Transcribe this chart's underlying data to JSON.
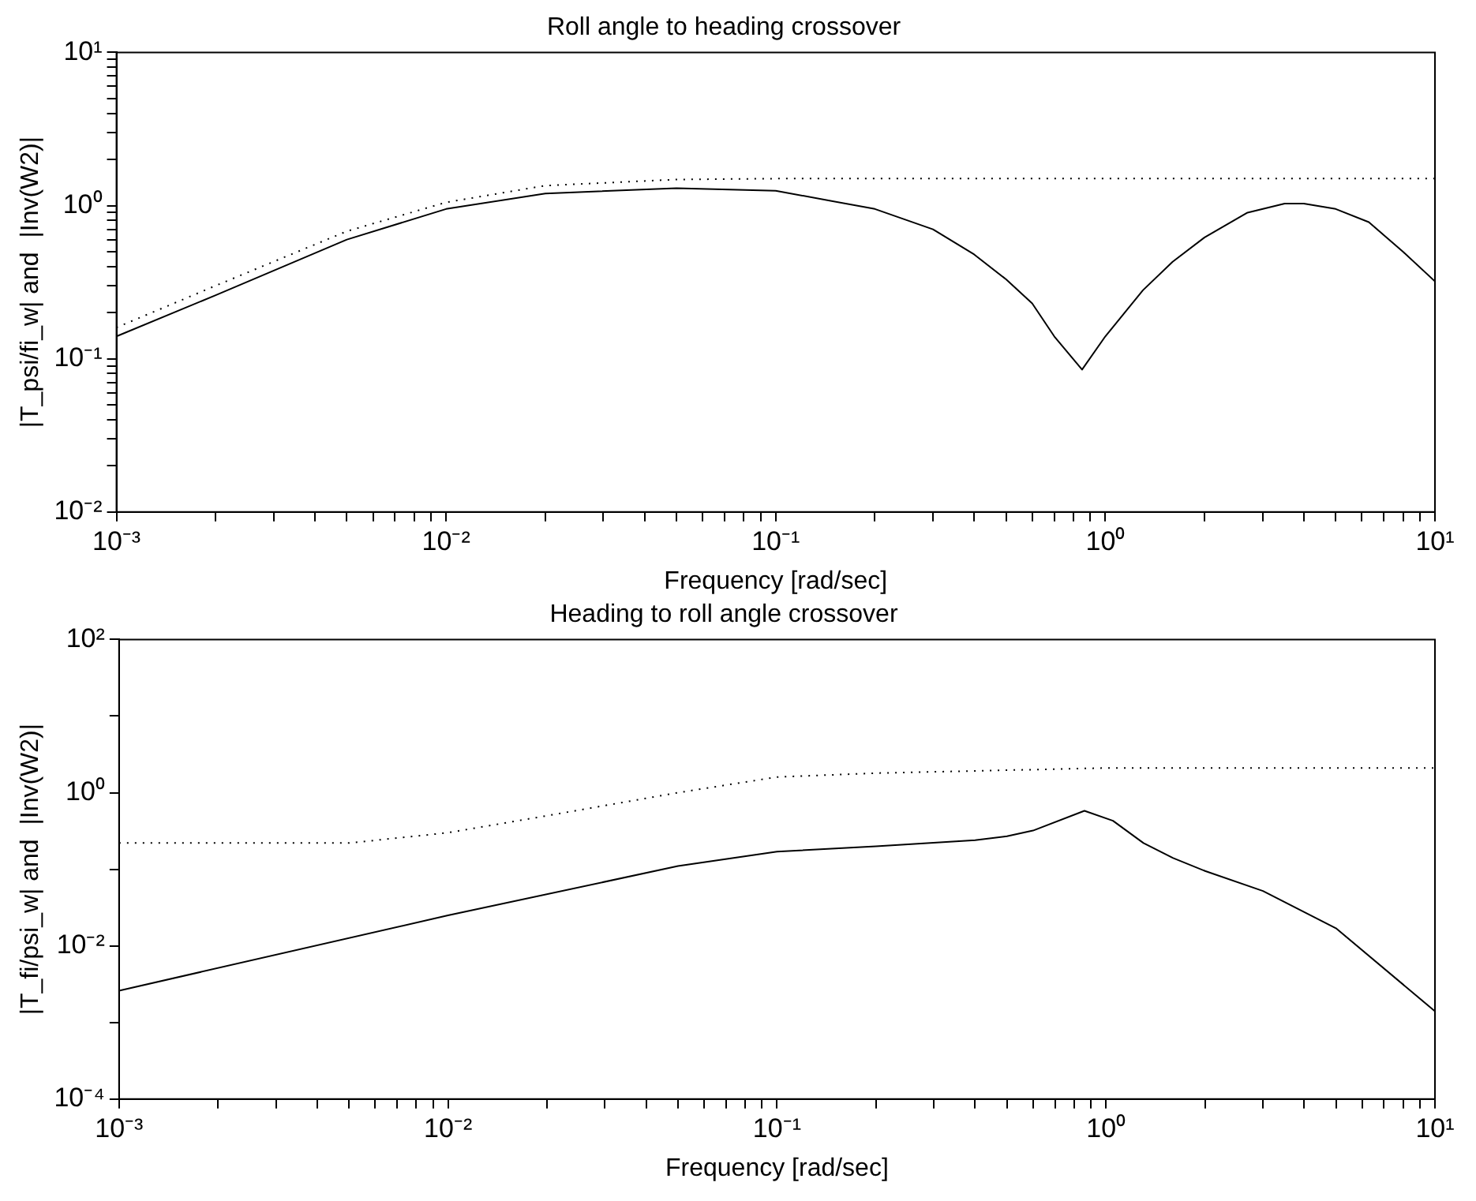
{
  "chart_data": [
    {
      "type": "line",
      "title": "Roll angle to heading crossover",
      "xlabel": "Frequency [rad/sec]",
      "ylabel": "|T_psi/fi_w| and  |Inv(W2)|",
      "log": "xy",
      "grid": false,
      "legend": false,
      "xlim": [
        0.001,
        10
      ],
      "ylim": [
        0.01,
        10
      ],
      "xticks": [
        {
          "value": 0.001,
          "label": "10⁻³"
        },
        {
          "value": 0.002,
          "label": null
        },
        {
          "value": 0.003,
          "label": null
        },
        {
          "value": 0.004,
          "label": null
        },
        {
          "value": 0.005,
          "label": null
        },
        {
          "value": 0.006,
          "label": null
        },
        {
          "value": 0.007,
          "label": null
        },
        {
          "value": 0.008,
          "label": null
        },
        {
          "value": 0.009,
          "label": null
        },
        {
          "value": 0.01,
          "label": "10⁻²"
        },
        {
          "value": 0.02,
          "label": null
        },
        {
          "value": 0.03,
          "label": null
        },
        {
          "value": 0.04,
          "label": null
        },
        {
          "value": 0.05,
          "label": null
        },
        {
          "value": 0.06,
          "label": null
        },
        {
          "value": 0.07,
          "label": null
        },
        {
          "value": 0.08,
          "label": null
        },
        {
          "value": 0.09,
          "label": null
        },
        {
          "value": 0.1,
          "label": "10⁻¹"
        },
        {
          "value": 0.2,
          "label": null
        },
        {
          "value": 0.3,
          "label": null
        },
        {
          "value": 0.4,
          "label": null
        },
        {
          "value": 0.5,
          "label": null
        },
        {
          "value": 0.6,
          "label": null
        },
        {
          "value": 0.7,
          "label": null
        },
        {
          "value": 0.8,
          "label": null
        },
        {
          "value": 0.9,
          "label": null
        },
        {
          "value": 1,
          "label": "10⁰"
        },
        {
          "value": 2,
          "label": null
        },
        {
          "value": 3,
          "label": null
        },
        {
          "value": 4,
          "label": null
        },
        {
          "value": 5,
          "label": null
        },
        {
          "value": 6,
          "label": null
        },
        {
          "value": 7,
          "label": null
        },
        {
          "value": 8,
          "label": null
        },
        {
          "value": 9,
          "label": null
        },
        {
          "value": 10,
          "label": "10¹"
        }
      ],
      "yticks": [
        {
          "value": 0.01,
          "label": "10⁻²"
        },
        {
          "value": 0.02,
          "label": null
        },
        {
          "value": 0.03,
          "label": null
        },
        {
          "value": 0.04,
          "label": null
        },
        {
          "value": 0.05,
          "label": null
        },
        {
          "value": 0.06,
          "label": null
        },
        {
          "value": 0.07,
          "label": null
        },
        {
          "value": 0.08,
          "label": null
        },
        {
          "value": 0.09,
          "label": null
        },
        {
          "value": 0.1,
          "label": "10⁻¹"
        },
        {
          "value": 0.2,
          "label": null
        },
        {
          "value": 0.3,
          "label": null
        },
        {
          "value": 0.4,
          "label": null
        },
        {
          "value": 0.5,
          "label": null
        },
        {
          "value": 0.6,
          "label": null
        },
        {
          "value": 0.7,
          "label": null
        },
        {
          "value": 0.8,
          "label": null
        },
        {
          "value": 0.9,
          "label": null
        },
        {
          "value": 1,
          "label": "10⁰"
        },
        {
          "value": 2,
          "label": null
        },
        {
          "value": 3,
          "label": null
        },
        {
          "value": 4,
          "label": null
        },
        {
          "value": 5,
          "label": null
        },
        {
          "value": 6,
          "label": null
        },
        {
          "value": 7,
          "label": null
        },
        {
          "value": 8,
          "label": null
        },
        {
          "value": 9,
          "label": null
        },
        {
          "value": 10,
          "label": "10¹"
        }
      ],
      "series": [
        {
          "color": "#000000",
          "line_style": "solid",
          "x": [
            0.001,
            0.002,
            0.005,
            0.01,
            0.02,
            0.05,
            0.1,
            0.2,
            0.3,
            0.4,
            0.5,
            0.6,
            0.7,
            0.85,
            1.0,
            1.3,
            1.6,
            2,
            2.7,
            3.5,
            4,
            5,
            6.3,
            8,
            10
          ],
          "values": [
            0.14,
            0.26,
            0.6,
            0.95,
            1.2,
            1.3,
            1.25,
            0.95,
            0.7,
            0.48,
            0.33,
            0.23,
            0.14,
            0.085,
            0.14,
            0.28,
            0.43,
            0.62,
            0.9,
            1.03,
            1.03,
            0.95,
            0.78,
            0.5,
            0.32
          ]
        },
        {
          "color": "#000000",
          "line_style": "dotted",
          "x": [
            0.001,
            0.002,
            0.005,
            0.01,
            0.02,
            0.05,
            0.1,
            1,
            10
          ],
          "values": [
            0.16,
            0.3,
            0.68,
            1.05,
            1.35,
            1.48,
            1.5,
            1.5,
            1.5
          ]
        }
      ]
    },
    {
      "type": "line",
      "title": "Heading to roll angle crossover",
      "xlabel": "Frequency [rad/sec]",
      "ylabel": "|T_fi/psi_w| and  |Inv(W2)|",
      "log": "xy",
      "grid": false,
      "legend": false,
      "xlim": [
        0.001,
        10
      ],
      "ylim": [
        0.0001,
        100
      ],
      "xticks": [
        {
          "value": 0.001,
          "label": "10⁻³"
        },
        {
          "value": 0.002,
          "label": null
        },
        {
          "value": 0.003,
          "label": null
        },
        {
          "value": 0.004,
          "label": null
        },
        {
          "value": 0.005,
          "label": null
        },
        {
          "value": 0.006,
          "label": null
        },
        {
          "value": 0.007,
          "label": null
        },
        {
          "value": 0.008,
          "label": null
        },
        {
          "value": 0.009,
          "label": null
        },
        {
          "value": 0.01,
          "label": "10⁻²"
        },
        {
          "value": 0.02,
          "label": null
        },
        {
          "value": 0.03,
          "label": null
        },
        {
          "value": 0.04,
          "label": null
        },
        {
          "value": 0.05,
          "label": null
        },
        {
          "value": 0.06,
          "label": null
        },
        {
          "value": 0.07,
          "label": null
        },
        {
          "value": 0.08,
          "label": null
        },
        {
          "value": 0.09,
          "label": null
        },
        {
          "value": 0.1,
          "label": "10⁻¹"
        },
        {
          "value": 0.2,
          "label": null
        },
        {
          "value": 0.3,
          "label": null
        },
        {
          "value": 0.4,
          "label": null
        },
        {
          "value": 0.5,
          "label": null
        },
        {
          "value": 0.6,
          "label": null
        },
        {
          "value": 0.7,
          "label": null
        },
        {
          "value": 0.8,
          "label": null
        },
        {
          "value": 0.9,
          "label": null
        },
        {
          "value": 1,
          "label": "10⁰"
        },
        {
          "value": 2,
          "label": null
        },
        {
          "value": 3,
          "label": null
        },
        {
          "value": 4,
          "label": null
        },
        {
          "value": 5,
          "label": null
        },
        {
          "value": 6,
          "label": null
        },
        {
          "value": 7,
          "label": null
        },
        {
          "value": 8,
          "label": null
        },
        {
          "value": 9,
          "label": null
        },
        {
          "value": 10,
          "label": "10¹"
        }
      ],
      "yticks": [
        {
          "value": 0.0001,
          "label": "10⁻⁴"
        },
        {
          "value": 0.001,
          "label": null
        },
        {
          "value": 0.01,
          "label": "10⁻²"
        },
        {
          "value": 0.1,
          "label": null
        },
        {
          "value": 1,
          "label": "10⁰"
        },
        {
          "value": 10,
          "label": null
        },
        {
          "value": 100,
          "label": "10²"
        }
      ],
      "series": [
        {
          "color": "#000000",
          "line_style": "solid",
          "x": [
            0.001,
            0.01,
            0.05,
            0.1,
            0.2,
            0.4,
            0.5,
            0.6,
            0.86,
            1.05,
            1.3,
            1.6,
            2,
            3,
            5,
            10
          ],
          "values": [
            0.0026,
            0.025,
            0.11,
            0.17,
            0.2,
            0.24,
            0.27,
            0.32,
            0.58,
            0.43,
            0.22,
            0.14,
            0.095,
            0.052,
            0.017,
            0.0014
          ]
        },
        {
          "color": "#000000",
          "line_style": "dotted",
          "x": [
            0.001,
            0.005,
            0.01,
            0.02,
            0.05,
            0.1,
            0.2,
            1,
            10
          ],
          "values": [
            0.22,
            0.22,
            0.3,
            0.5,
            1.0,
            1.6,
            1.8,
            2.1,
            2.1
          ]
        }
      ]
    }
  ]
}
